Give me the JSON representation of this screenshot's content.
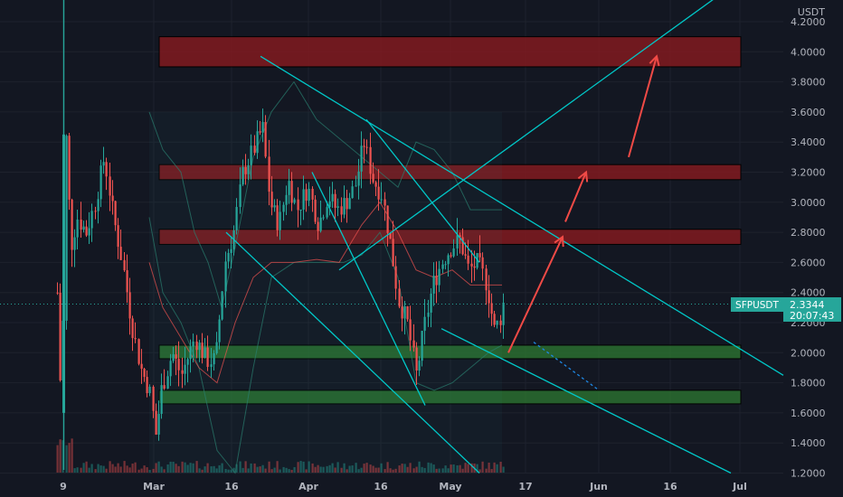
{
  "currency_label": "USDT",
  "chart_data": {
    "type": "candlestick",
    "symbol": "SFPUSDT",
    "last_price": "2.3344",
    "countdown": "20:07:43",
    "ylim": [
      1.2,
      4.35
    ],
    "y_ticks": [
      "4.2000",
      "4.0000",
      "3.8000",
      "3.6000",
      "3.4000",
      "3.2000",
      "3.0000",
      "2.8000",
      "2.6000",
      "2.4000",
      "2.2000",
      "2.0000",
      "1.8000",
      "1.6000",
      "1.4000",
      "1.2000"
    ],
    "x_ticks": [
      "9",
      "Mar",
      "16",
      "Apr",
      "16",
      "May",
      "17",
      "Jun",
      "16",
      "Jul"
    ],
    "resistance_zones": [
      {
        "low": 3.9,
        "high": 4.1
      },
      {
        "low": 3.15,
        "high": 3.25
      },
      {
        "low": 2.72,
        "high": 2.82
      }
    ],
    "support_zones": [
      {
        "low": 1.96,
        "high": 2.05
      },
      {
        "low": 1.66,
        "high": 1.75
      }
    ],
    "colors": {
      "background": "#131722",
      "bull": "#26a69a",
      "bear": "#ef5350",
      "trendline": "#00c8c8",
      "resistance": "#8b1a1f",
      "support": "#2e7d32",
      "arrow": "#f04a46",
      "price_tag": "#26a69a"
    }
  }
}
